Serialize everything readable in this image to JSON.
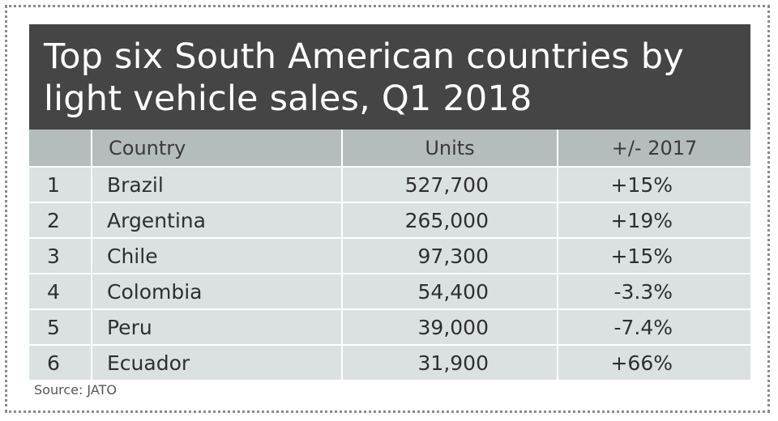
{
  "title": "Top six South American countries by light vehicle sales, Q1 2018",
  "source": "Source: JATO",
  "columns": [
    "",
    "Country",
    "Units",
    "+/- 2017"
  ],
  "chart_data": {
    "type": "table",
    "title": "Top six South American countries by light vehicle sales, Q1 2018",
    "columns": [
      "",
      "Country",
      "Units",
      "+/- 2017"
    ],
    "rows": [
      {
        "rank": "1",
        "country": "Brazil",
        "units": "527,700",
        "change": "+15%"
      },
      {
        "rank": "2",
        "country": "Argentina",
        "units": "265,000",
        "change": "+19%"
      },
      {
        "rank": "3",
        "country": "Chile",
        "units": "97,300",
        "change": "+15%"
      },
      {
        "rank": "4",
        "country": "Colombia",
        "units": "54,400",
        "change": "-3.3%"
      },
      {
        "rank": "5",
        "country": "Peru",
        "units": "39,000",
        "change": "-7.4%"
      },
      {
        "rank": "6",
        "country": "Ecuador",
        "units": "31,900",
        "change": "+66%"
      }
    ],
    "source": "Source: JATO"
  }
}
